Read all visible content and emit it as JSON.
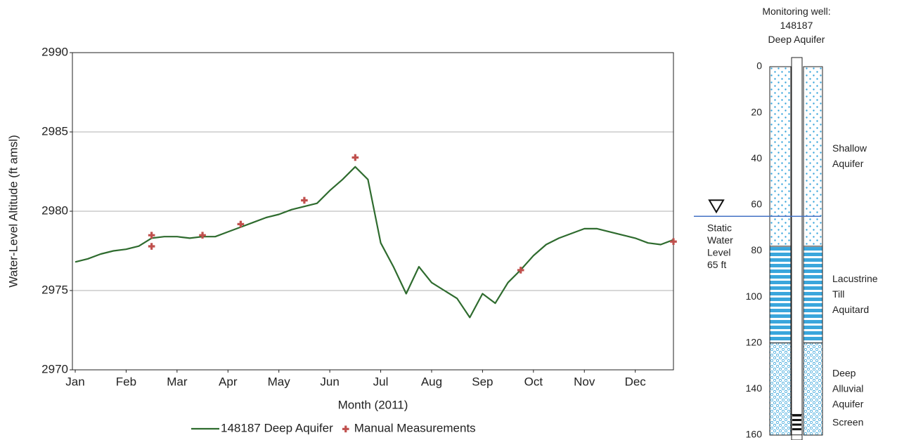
{
  "chart_data": {
    "type": "line",
    "y_label": "Water-Level Altitude (ft amsl)",
    "x_label": "Month (2011)",
    "categories": [
      "Jan",
      null,
      null,
      null,
      "Feb",
      null,
      null,
      null,
      "Mar",
      null,
      null,
      null,
      "Apr",
      null,
      null,
      null,
      "May",
      null,
      null,
      null,
      "Jun",
      null,
      null,
      null,
      "Jul",
      null,
      null,
      null,
      "Aug",
      null,
      null,
      null,
      "Sep",
      null,
      null,
      null,
      "Oct",
      null,
      null,
      null,
      "Nov",
      null,
      null,
      null,
      "Dec",
      null,
      null,
      null
    ],
    "series": [
      {
        "name": "148187 Deep Aquifer",
        "color": "#2e6b2e",
        "marker": "none",
        "values": [
          2976.8,
          2977.0,
          2977.3,
          2977.5,
          2977.6,
          2977.8,
          2978.3,
          2978.4,
          2978.4,
          2978.3,
          2978.4,
          2978.4,
          2978.7,
          2979.0,
          2979.3,
          2979.6,
          2979.8,
          2980.1,
          2980.3,
          2980.5,
          2981.3,
          2982.0,
          2982.8,
          2982.0,
          2978.0,
          2976.5,
          2974.8,
          2976.5,
          2975.5,
          2975.0,
          2974.5,
          2973.3,
          2974.8,
          2974.2,
          2975.5,
          2976.3,
          2977.2,
          2977.9,
          2978.3,
          2978.6,
          2978.9,
          2978.9,
          2978.7,
          2978.5,
          2978.3,
          2978.0,
          2977.9,
          2978.2
        ]
      },
      {
        "name": "Manual Measurements",
        "color": "#c0504d",
        "marker": "plus",
        "values": [
          null,
          null,
          null,
          null,
          null,
          null,
          [
            2978.5,
            2977.8
          ],
          null,
          null,
          null,
          2978.5,
          null,
          null,
          2979.2,
          null,
          null,
          null,
          null,
          2980.7,
          null,
          null,
          null,
          2983.4,
          null,
          null,
          null,
          null,
          null,
          null,
          null,
          null,
          null,
          null,
          null,
          null,
          2976.3,
          null,
          null,
          null,
          null,
          null,
          null,
          null,
          null,
          null,
          null,
          null,
          2978.1
        ]
      }
    ],
    "ylim": [
      2970,
      2990
    ],
    "yticks": [
      2970,
      2975,
      2980,
      2985,
      2990
    ],
    "grid": true
  },
  "well": {
    "title": [
      "Monitoring well:",
      "148187",
      "Deep Aquifer"
    ],
    "depth_lim": [
      0,
      160
    ],
    "depth_ticks": [
      0,
      20,
      40,
      60,
      80,
      100,
      120,
      140,
      160
    ],
    "layers": [
      {
        "label": [
          "Shallow",
          "Aquifer"
        ],
        "top": 0,
        "bottom": 78,
        "pattern": "dots"
      },
      {
        "label": [
          "Lacustrine",
          "Till",
          "Aquitard"
        ],
        "top": 78,
        "bottom": 120,
        "pattern": "stripes"
      },
      {
        "label": [
          "Deep",
          "Alluvial",
          "Aquifer"
        ],
        "top": 120,
        "bottom": 160,
        "pattern": "circles"
      }
    ],
    "screen": {
      "label": "Screen",
      "top": 151,
      "bottom": 159
    },
    "static_water_level": {
      "label": [
        "Static",
        "Water",
        "Level",
        "65 ft"
      ],
      "depth": 65,
      "color": "#4472c4"
    }
  }
}
